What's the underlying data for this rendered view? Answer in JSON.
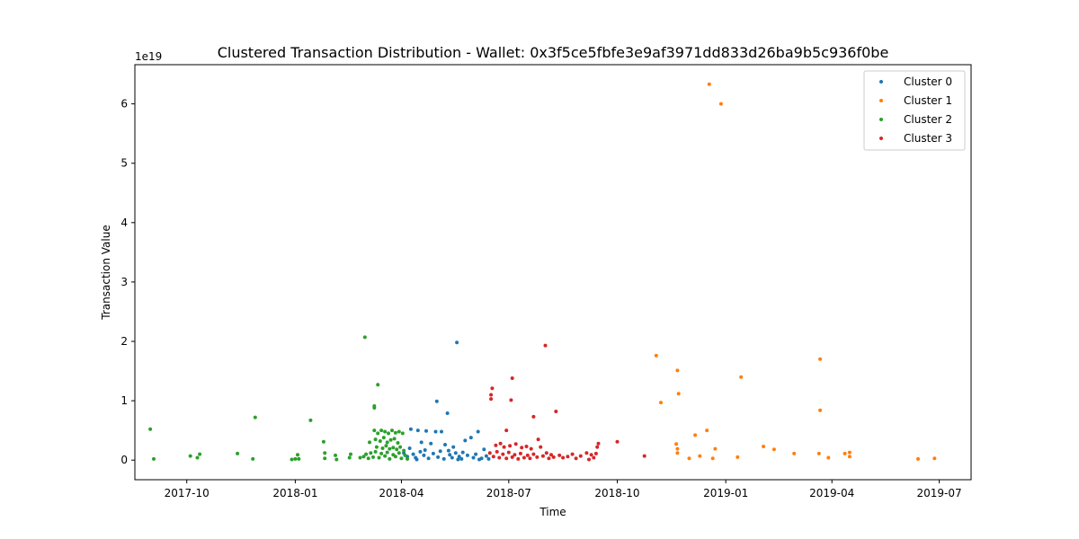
{
  "chart_data": {
    "type": "scatter",
    "title": "Clustered Transaction Distribution - Wallet: 0x3f5ce5fbfe3e9af3971dd833d26ba9b5c936f0be",
    "xlabel": "Time",
    "ylabel": "Transaction Value",
    "y_offset_label": "1e19",
    "xlim": [
      "2017-08-18",
      "2019-07-28"
    ],
    "ylim": [
      -0.33,
      6.66
    ],
    "y_scale": "1e19",
    "x_ticks": [
      {
        "date": "2017-10-01",
        "label": "2017-10"
      },
      {
        "date": "2018-01-01",
        "label": "2018-01"
      },
      {
        "date": "2018-04-01",
        "label": "2018-04"
      },
      {
        "date": "2018-07-01",
        "label": "2018-07"
      },
      {
        "date": "2018-10-01",
        "label": "2018-10"
      },
      {
        "date": "2019-01-01",
        "label": "2019-01"
      },
      {
        "date": "2019-04-01",
        "label": "2019-04"
      },
      {
        "date": "2019-07-01",
        "label": "2019-07"
      }
    ],
    "y_ticks": [
      0,
      1,
      2,
      3,
      4,
      5,
      6
    ],
    "legend_position": "top-right",
    "grid": false,
    "series": [
      {
        "name": "Cluster 0",
        "color": "#1f77b4",
        "points": [
          [
            "2018-05-18",
            1.98
          ],
          [
            "2018-05-01",
            0.99
          ],
          [
            "2018-05-10",
            0.79
          ],
          [
            "2018-04-09",
            0.52
          ],
          [
            "2018-04-15",
            0.5
          ],
          [
            "2018-04-22",
            0.49
          ],
          [
            "2018-04-30",
            0.48
          ],
          [
            "2018-05-05",
            0.48
          ],
          [
            "2018-05-25",
            0.33
          ],
          [
            "2018-05-30",
            0.38
          ],
          [
            "2018-06-05",
            0.48
          ],
          [
            "2018-04-18",
            0.3
          ],
          [
            "2018-04-26",
            0.28
          ],
          [
            "2018-05-08",
            0.26
          ],
          [
            "2018-05-15",
            0.22
          ],
          [
            "2018-06-10",
            0.18
          ],
          [
            "2018-04-03",
            0.12
          ],
          [
            "2018-04-06",
            0.06
          ],
          [
            "2018-04-11",
            0.1
          ],
          [
            "2018-04-13",
            0.04
          ],
          [
            "2018-04-17",
            0.14
          ],
          [
            "2018-04-20",
            0.08
          ],
          [
            "2018-04-24",
            0.03
          ],
          [
            "2018-04-28",
            0.11
          ],
          [
            "2018-05-02",
            0.05
          ],
          [
            "2018-05-04",
            0.15
          ],
          [
            "2018-05-07",
            0.02
          ],
          [
            "2018-05-12",
            0.09
          ],
          [
            "2018-05-14",
            0.04
          ],
          [
            "2018-05-17",
            0.12
          ],
          [
            "2018-05-20",
            0.06
          ],
          [
            "2018-05-22",
            0.02
          ],
          [
            "2018-05-27",
            0.08
          ],
          [
            "2018-06-01",
            0.04
          ],
          [
            "2018-06-03",
            0.1
          ],
          [
            "2018-06-08",
            0.03
          ],
          [
            "2018-06-12",
            0.07
          ],
          [
            "2018-06-14",
            0.02
          ],
          [
            "2018-04-08",
            0.2
          ],
          [
            "2018-04-21",
            0.17
          ],
          [
            "2018-05-11",
            0.16
          ],
          [
            "2018-05-23",
            0.13
          ],
          [
            "2018-04-14",
            0.01
          ],
          [
            "2018-05-19",
            0.01
          ],
          [
            "2018-06-06",
            0.01
          ]
        ]
      },
      {
        "name": "Cluster 1",
        "color": "#ff7f0e",
        "points": [
          [
            "2018-12-18",
            6.33
          ],
          [
            "2018-12-28",
            6.0
          ],
          [
            "2018-11-03",
            1.76
          ],
          [
            "2019-03-22",
            1.7
          ],
          [
            "2018-11-21",
            1.51
          ],
          [
            "2019-01-14",
            1.4
          ],
          [
            "2018-11-22",
            1.12
          ],
          [
            "2018-11-07",
            0.97
          ],
          [
            "2019-03-22",
            0.84
          ],
          [
            "2018-12-16",
            0.5
          ],
          [
            "2018-12-06",
            0.42
          ],
          [
            "2018-11-20",
            0.27
          ],
          [
            "2018-11-21",
            0.19
          ],
          [
            "2018-12-23",
            0.19
          ],
          [
            "2019-02-02",
            0.23
          ],
          [
            "2019-02-11",
            0.18
          ],
          [
            "2018-11-21",
            0.12
          ],
          [
            "2019-02-28",
            0.11
          ],
          [
            "2019-03-21",
            0.11
          ],
          [
            "2019-04-12",
            0.11
          ],
          [
            "2019-04-16",
            0.13
          ],
          [
            "2018-12-10",
            0.07
          ],
          [
            "2018-12-01",
            0.03
          ],
          [
            "2018-12-21",
            0.03
          ],
          [
            "2019-01-11",
            0.05
          ],
          [
            "2019-03-29",
            0.04
          ],
          [
            "2019-04-16",
            0.06
          ],
          [
            "2019-06-13",
            0.02
          ],
          [
            "2019-06-27",
            0.03
          ]
        ]
      },
      {
        "name": "Cluster 2",
        "color": "#2ca02c",
        "points": [
          [
            "2017-08-31",
            0.52
          ],
          [
            "2017-09-03",
            0.02
          ],
          [
            "2017-10-04",
            0.07
          ],
          [
            "2017-10-10",
            0.04
          ],
          [
            "2017-10-12",
            0.1
          ],
          [
            "2017-11-13",
            0.11
          ],
          [
            "2017-11-26",
            0.02
          ],
          [
            "2017-11-28",
            0.72
          ],
          [
            "2017-12-29",
            0.01
          ],
          [
            "2018-01-01",
            0.02
          ],
          [
            "2018-01-03",
            0.09
          ],
          [
            "2018-01-04",
            0.02
          ],
          [
            "2018-01-14",
            0.67
          ],
          [
            "2018-01-25",
            0.31
          ],
          [
            "2018-01-26",
            0.12
          ],
          [
            "2018-01-26",
            0.03
          ],
          [
            "2018-02-04",
            0.08
          ],
          [
            "2018-02-05",
            0.01
          ],
          [
            "2018-02-16",
            0.04
          ],
          [
            "2018-02-17",
            0.1
          ],
          [
            "2018-02-25",
            0.04
          ],
          [
            "2018-03-01",
            2.07
          ],
          [
            "2018-03-12",
            1.27
          ],
          [
            "2018-03-09",
            0.91
          ],
          [
            "2018-03-09",
            0.88
          ],
          [
            "2018-03-05",
            0.3
          ],
          [
            "2018-03-09",
            0.5
          ],
          [
            "2018-03-12",
            0.45
          ],
          [
            "2018-03-15",
            0.5
          ],
          [
            "2018-03-18",
            0.48
          ],
          [
            "2018-03-21",
            0.45
          ],
          [
            "2018-03-24",
            0.5
          ],
          [
            "2018-03-27",
            0.46
          ],
          [
            "2018-03-30",
            0.48
          ],
          [
            "2018-04-02",
            0.45
          ],
          [
            "2018-03-10",
            0.35
          ],
          [
            "2018-03-14",
            0.32
          ],
          [
            "2018-03-17",
            0.38
          ],
          [
            "2018-03-20",
            0.3
          ],
          [
            "2018-03-23",
            0.34
          ],
          [
            "2018-03-26",
            0.36
          ],
          [
            "2018-03-29",
            0.29
          ],
          [
            "2018-03-11",
            0.22
          ],
          [
            "2018-03-16",
            0.2
          ],
          [
            "2018-03-19",
            0.24
          ],
          [
            "2018-03-22",
            0.19
          ],
          [
            "2018-03-25",
            0.21
          ],
          [
            "2018-03-28",
            0.18
          ],
          [
            "2018-03-31",
            0.22
          ],
          [
            "2018-04-03",
            0.16
          ],
          [
            "2018-02-28",
            0.06
          ],
          [
            "2018-03-02",
            0.1
          ],
          [
            "2018-03-04",
            0.03
          ],
          [
            "2018-03-06",
            0.12
          ],
          [
            "2018-03-08",
            0.05
          ],
          [
            "2018-03-10",
            0.14
          ],
          [
            "2018-03-13",
            0.04
          ],
          [
            "2018-03-15",
            0.11
          ],
          [
            "2018-03-18",
            0.07
          ],
          [
            "2018-03-20",
            0.13
          ],
          [
            "2018-03-22",
            0.02
          ],
          [
            "2018-03-25",
            0.09
          ],
          [
            "2018-03-27",
            0.06
          ],
          [
            "2018-03-30",
            0.12
          ],
          [
            "2018-04-01",
            0.03
          ],
          [
            "2018-04-04",
            0.08
          ],
          [
            "2018-04-06",
            0.02
          ]
        ]
      },
      {
        "name": "Cluster 3",
        "color": "#d62728",
        "points": [
          [
            "2018-08-01",
            1.93
          ],
          [
            "2018-07-04",
            1.38
          ],
          [
            "2018-06-17",
            1.21
          ],
          [
            "2018-06-16",
            1.1
          ],
          [
            "2018-06-16",
            1.03
          ],
          [
            "2018-07-03",
            1.01
          ],
          [
            "2018-08-10",
            0.82
          ],
          [
            "2018-07-22",
            0.73
          ],
          [
            "2018-06-29",
            0.5
          ],
          [
            "2018-07-26",
            0.35
          ],
          [
            "2018-09-15",
            0.28
          ],
          [
            "2018-10-01",
            0.31
          ],
          [
            "2018-09-14",
            0.22
          ],
          [
            "2018-06-20",
            0.25
          ],
          [
            "2018-06-24",
            0.28
          ],
          [
            "2018-06-27",
            0.22
          ],
          [
            "2018-07-02",
            0.24
          ],
          [
            "2018-07-07",
            0.27
          ],
          [
            "2018-07-12",
            0.21
          ],
          [
            "2018-07-16",
            0.23
          ],
          [
            "2018-07-20",
            0.19
          ],
          [
            "2018-07-28",
            0.22
          ],
          [
            "2018-06-15",
            0.12
          ],
          [
            "2018-06-18",
            0.06
          ],
          [
            "2018-06-21",
            0.14
          ],
          [
            "2018-06-23",
            0.04
          ],
          [
            "2018-06-26",
            0.1
          ],
          [
            "2018-06-29",
            0.03
          ],
          [
            "2018-07-01",
            0.13
          ],
          [
            "2018-07-04",
            0.05
          ],
          [
            "2018-07-06",
            0.09
          ],
          [
            "2018-07-09",
            0.02
          ],
          [
            "2018-07-11",
            0.11
          ],
          [
            "2018-07-14",
            0.04
          ],
          [
            "2018-07-17",
            0.08
          ],
          [
            "2018-07-19",
            0.03
          ],
          [
            "2018-07-22",
            0.1
          ],
          [
            "2018-07-25",
            0.05
          ],
          [
            "2018-07-30",
            0.07
          ],
          [
            "2018-08-02",
            0.12
          ],
          [
            "2018-08-04",
            0.03
          ],
          [
            "2018-08-06",
            0.09
          ],
          [
            "2018-08-08",
            0.05
          ],
          [
            "2018-08-13",
            0.08
          ],
          [
            "2018-08-16",
            0.04
          ],
          [
            "2018-08-20",
            0.06
          ],
          [
            "2018-08-24",
            0.1
          ],
          [
            "2018-08-27",
            0.03
          ],
          [
            "2018-08-31",
            0.07
          ],
          [
            "2018-09-05",
            0.12
          ],
          [
            "2018-09-07",
            0.01
          ],
          [
            "2018-09-09",
            0.09
          ],
          [
            "2018-09-11",
            0.04
          ],
          [
            "2018-09-13",
            0.11
          ],
          [
            "2018-10-24",
            0.07
          ]
        ]
      }
    ]
  }
}
